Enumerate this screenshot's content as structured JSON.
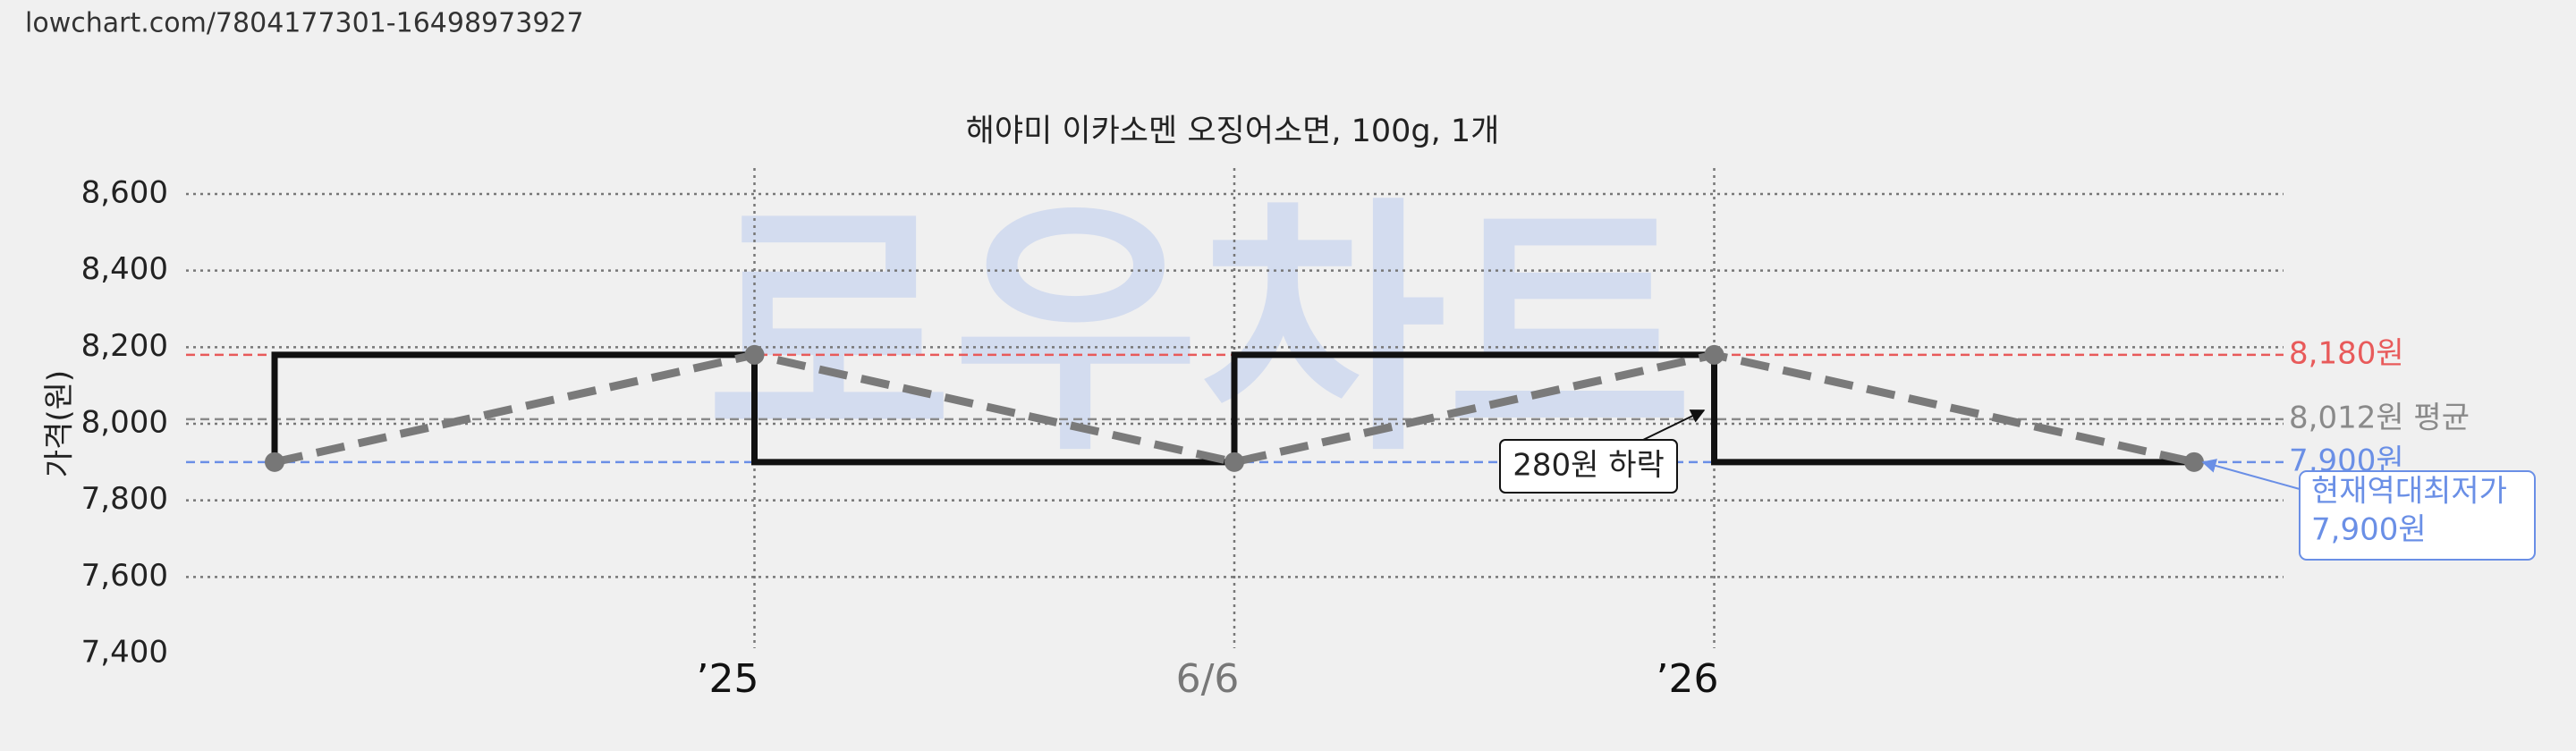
{
  "url": "lowchart.com/7804177301-16498973927",
  "watermark": "로우차트",
  "chart_data": {
    "type": "step-line",
    "title": "해야미 이카소멘 오징어소면, 100g, 1개",
    "y_label": "가격(원)",
    "categories": [
      null,
      "’25",
      "6/6",
      "’26",
      null
    ],
    "values": [
      7900,
      8180,
      7900,
      8180,
      7900
    ],
    "line_color": "#111111",
    "trend_color": "#7a7a7a",
    "ylim": [
      7400,
      8600
    ],
    "yticks": [
      {
        "value": 7400,
        "label": "7,400"
      },
      {
        "value": 7600,
        "label": "7,600"
      },
      {
        "value": 7800,
        "label": "7,800"
      },
      {
        "value": 8000,
        "label": "8,000"
      },
      {
        "value": 8200,
        "label": "8,200"
      },
      {
        "value": 8400,
        "label": "8,400"
      },
      {
        "value": 8600,
        "label": "8,600"
      }
    ],
    "grid": true,
    "ref_lines": [
      {
        "value": 8180,
        "label": "8,180원",
        "color": "#e85a5a"
      },
      {
        "value": 8012,
        "label": "8,012원 평균",
        "color": "#8a8a8a"
      },
      {
        "value": 7900,
        "label": "7,900원",
        "color": "#6a8fe6"
      }
    ],
    "annotations": [
      {
        "lines": [
          "280원 하락"
        ],
        "index": 3
      },
      {
        "lines": [
          "현재역대최저가",
          "7,900원"
        ],
        "index": 4
      }
    ]
  }
}
